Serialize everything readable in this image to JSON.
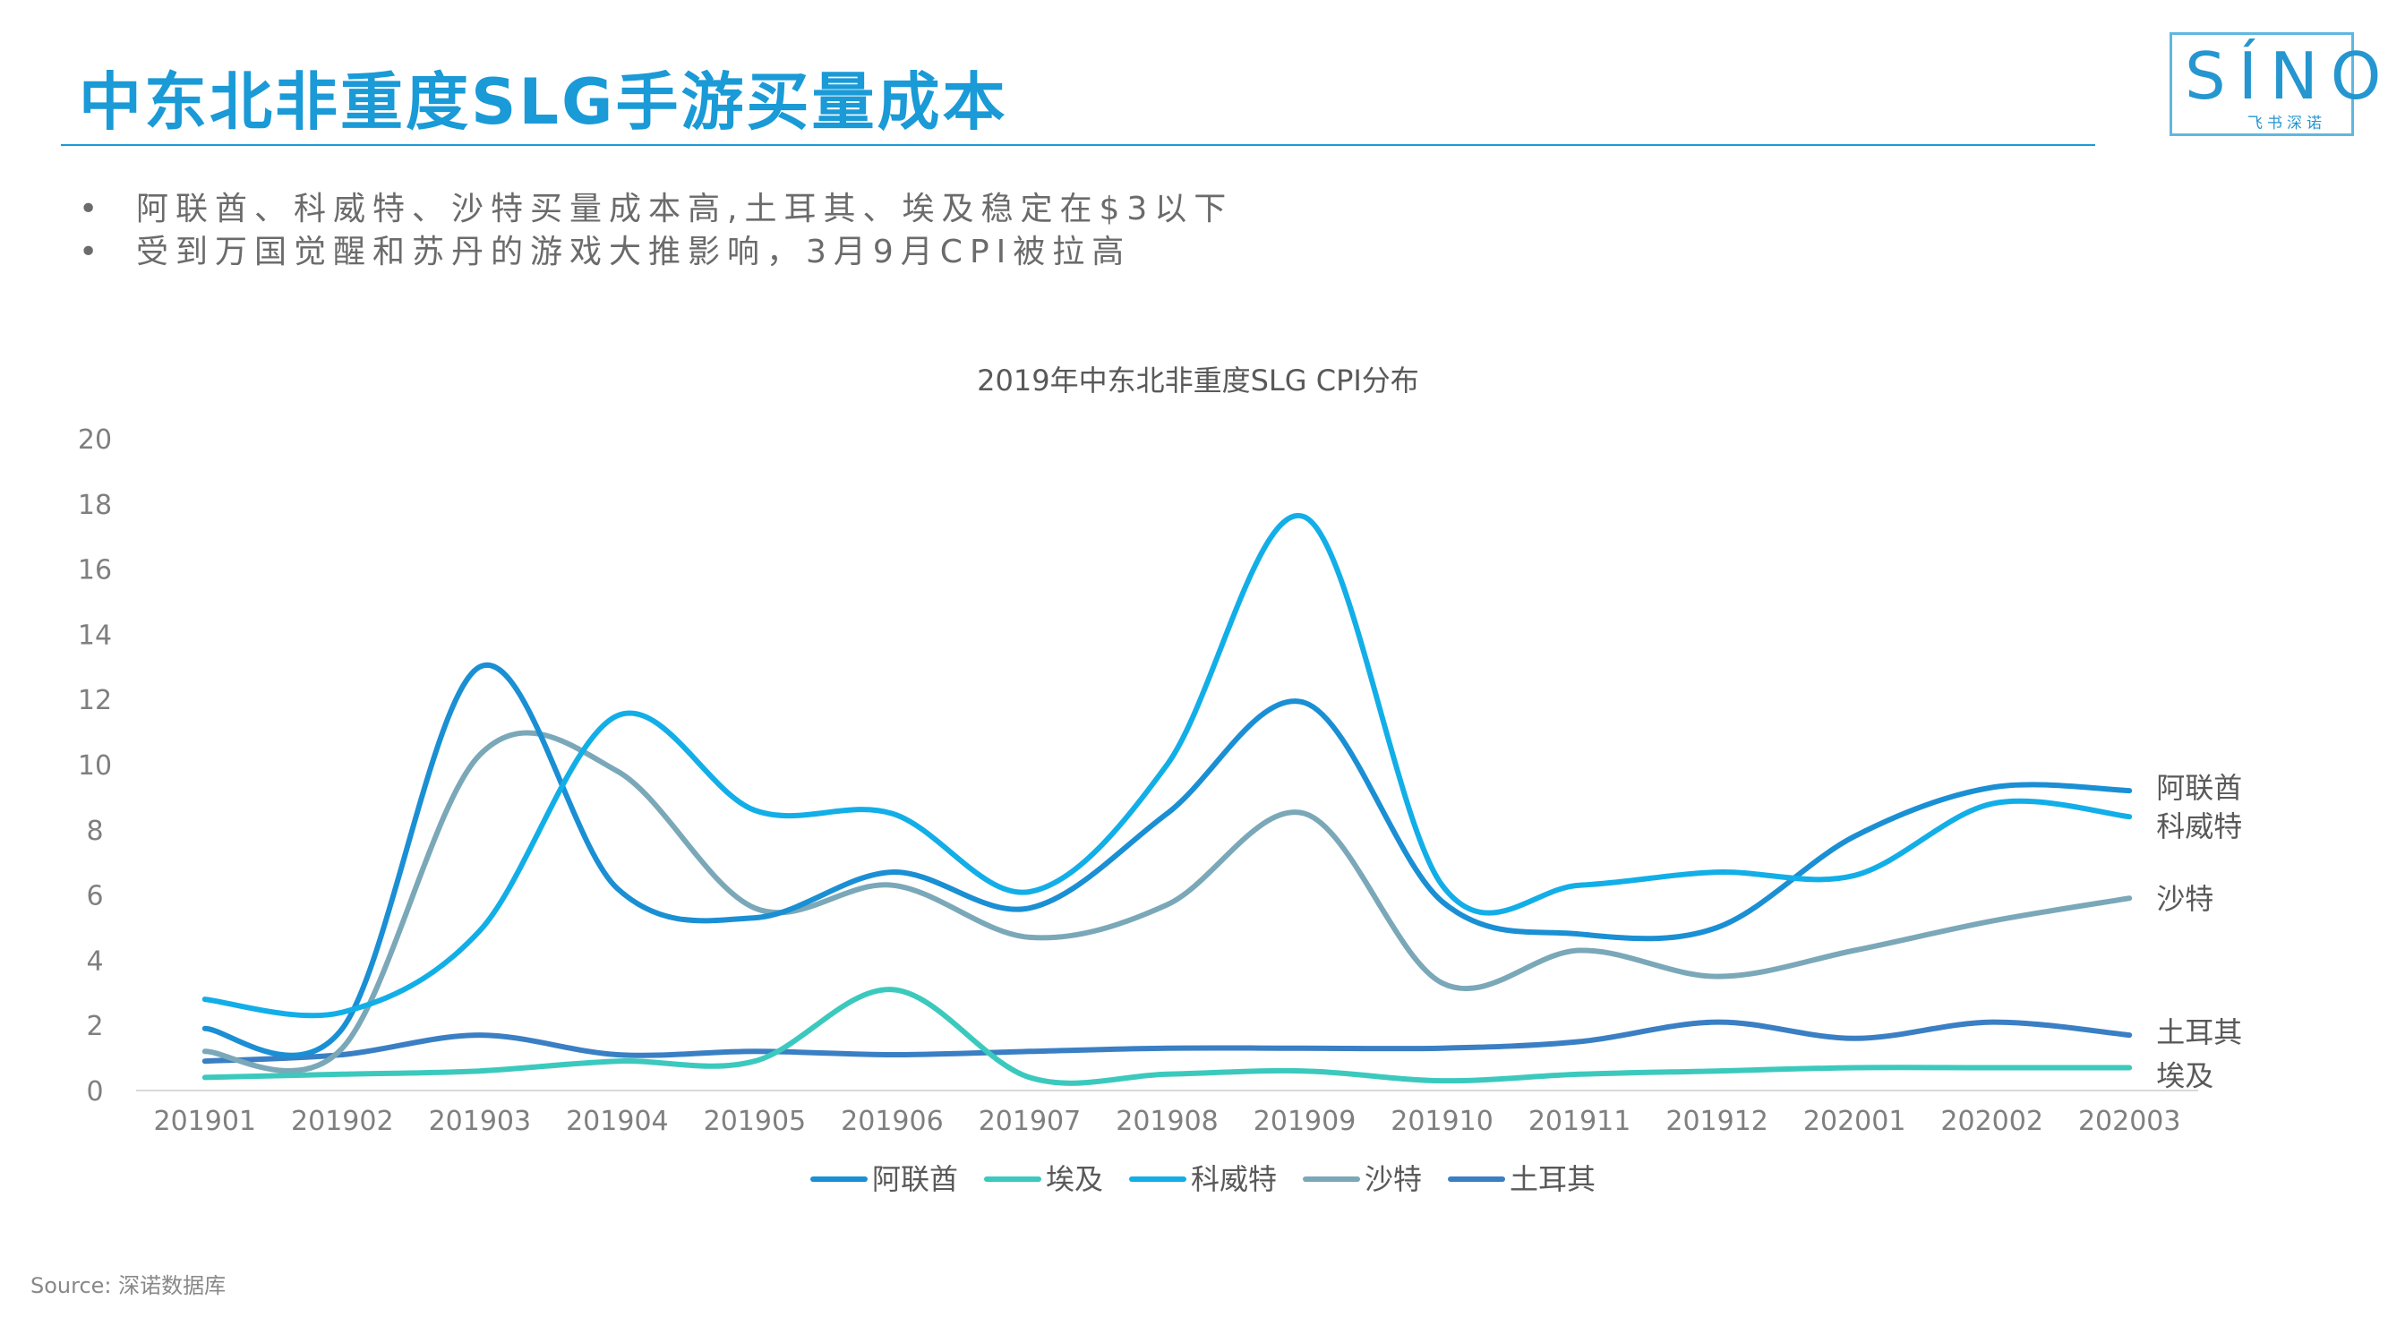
{
  "slide": {
    "title": "中东北非重度SLG手游买量成本",
    "bullets": [
      "阿联酋、科威特、沙特买量成本高,土耳其、埃及稳定在$3以下",
      "受到万国觉醒和苏丹的游戏大推影响，3月9月CPI被拉高"
    ],
    "bullet_marker": "•",
    "source": "Source: 深诺数据库"
  },
  "logo": {
    "word": "SÍNO",
    "tagline": "飞书深诺"
  },
  "colors": {
    "accent": "#1a9ad6",
    "text_gray": "#6b6b6b"
  },
  "chart_data": {
    "type": "line",
    "title": "2019年中东北非重度SLG CPI分布",
    "xlabel": "",
    "ylabel": "",
    "ylim": [
      0,
      20
    ],
    "yticks": [
      0,
      2,
      4,
      6,
      8,
      10,
      12,
      14,
      16,
      18,
      20
    ],
    "grid": false,
    "legend_position": "bottom",
    "categories": [
      "201901",
      "201902",
      "201903",
      "201904",
      "201905",
      "201906",
      "201907",
      "201908",
      "201909",
      "201910",
      "201911",
      "201912",
      "202001",
      "202002",
      "202003"
    ],
    "series": [
      {
        "name": "阿联酋",
        "color": "#1a8fd4",
        "values": [
          1.9,
          1.9,
          13.0,
          6.2,
          5.3,
          6.7,
          5.6,
          8.5,
          11.9,
          5.8,
          4.8,
          5.0,
          7.8,
          9.3,
          9.2
        ]
      },
      {
        "name": "埃及",
        "color": "#3cc9bd",
        "values": [
          0.4,
          0.5,
          0.6,
          0.9,
          0.9,
          3.1,
          0.4,
          0.5,
          0.6,
          0.3,
          0.5,
          0.6,
          0.7,
          0.7,
          0.7
        ]
      },
      {
        "name": "科威特",
        "color": "#12aee8",
        "values": [
          2.8,
          2.4,
          4.9,
          11.5,
          8.6,
          8.5,
          6.1,
          10.0,
          17.6,
          6.3,
          6.3,
          6.7,
          6.6,
          8.8,
          8.4
        ]
      },
      {
        "name": "沙特",
        "color": "#7aa8b8",
        "values": [
          1.2,
          1.3,
          10.3,
          9.8,
          5.6,
          6.3,
          4.7,
          5.7,
          8.5,
          3.3,
          4.3,
          3.5,
          4.3,
          5.2,
          5.9
        ]
      },
      {
        "name": "土耳其",
        "color": "#3a7fc4",
        "values": [
          0.9,
          1.1,
          1.7,
          1.1,
          1.2,
          1.1,
          1.2,
          1.3,
          1.3,
          1.3,
          1.5,
          2.1,
          1.6,
          2.1,
          1.7
        ]
      }
    ],
    "end_labels": [
      "阿联酋",
      "科威特",
      "沙特",
      "土耳其",
      "埃及"
    ]
  }
}
